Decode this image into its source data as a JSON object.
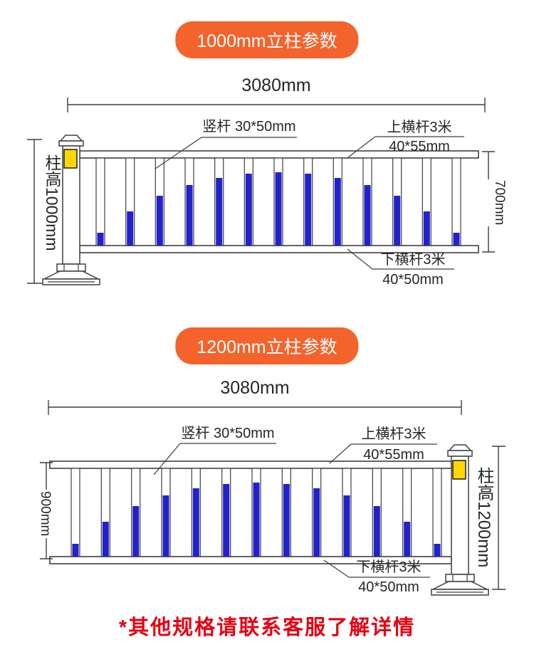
{
  "colors": {
    "accent_orange": "#f4632c",
    "picket_blue": "#2222cc",
    "reflector_yellow": "#ffd800",
    "line_dark": "#3f3f3f",
    "note_red": "#e60012",
    "text_dark": "#262626"
  },
  "sections": [
    {
      "badge_label": "1000mm立柱参数",
      "overall_width_label": "3080mm",
      "post_height_label": "柱高1000mm",
      "inner_height_label": "700mm",
      "picket_label": "竖杆 30*50mm",
      "top_rail_label_line1": "上横杆3米",
      "top_rail_label_line2": "40*55mm",
      "bottom_rail_label_line1": "下横杆3米",
      "bottom_rail_label_line2": "40*50mm",
      "picket_heights": [
        18,
        48,
        70,
        85,
        95,
        101,
        103,
        101,
        95,
        85,
        70,
        48,
        18
      ]
    },
    {
      "badge_label": "1200mm立柱参数",
      "overall_width_label": "3080mm",
      "post_height_label": "柱高1200mm",
      "inner_height_label": "900mm",
      "picket_label": "竖杆 30*50mm",
      "top_rail_label_line1": "上横杆3米",
      "top_rail_label_line2": "40*55mm",
      "bottom_rail_label_line1": "下横杆3米",
      "bottom_rail_label_line2": "40*50mm",
      "picket_heights": [
        18,
        49,
        71,
        86,
        96,
        102,
        104,
        102,
        96,
        86,
        71,
        49,
        18
      ]
    }
  ],
  "footnote": "*其他规格请联系客服了解详情"
}
